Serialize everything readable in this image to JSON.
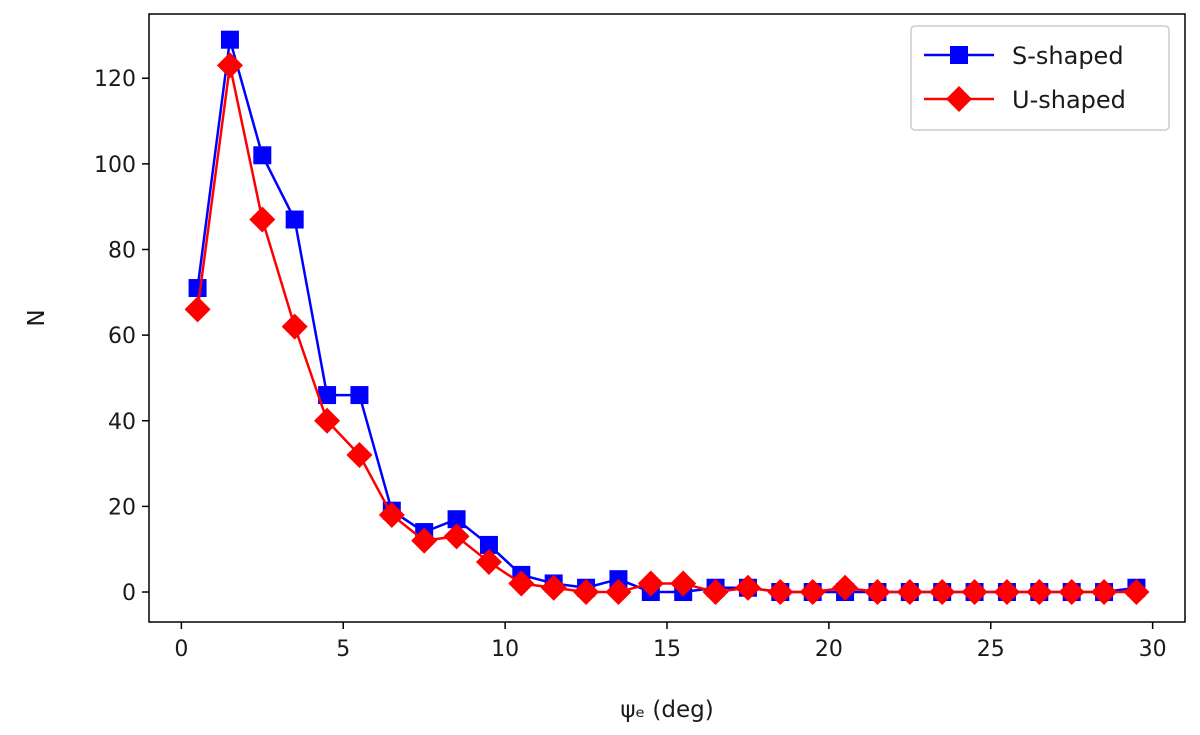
{
  "chart_data": {
    "type": "line",
    "title": "",
    "xlabel": "ψₑ (deg)",
    "ylabel": "N",
    "xlim": [
      -1,
      31
    ],
    "ylim": [
      -7,
      135
    ],
    "xticks": [
      0,
      5,
      10,
      15,
      20,
      25,
      30
    ],
    "yticks": [
      0,
      20,
      40,
      60,
      80,
      100,
      120
    ],
    "grid": false,
    "legend_position": "top-right",
    "x": [
      0.5,
      1.5,
      2.5,
      3.5,
      4.5,
      5.5,
      6.5,
      7.5,
      8.5,
      9.5,
      10.5,
      11.5,
      12.5,
      13.5,
      14.5,
      15.5,
      16.5,
      17.5,
      18.5,
      19.5,
      20.5,
      21.5,
      22.5,
      23.5,
      24.5,
      25.5,
      26.5,
      27.5,
      28.5,
      29.5
    ],
    "series": [
      {
        "name": "S-shaped",
        "color": "#0000ff",
        "marker": "square",
        "values": [
          71,
          129,
          102,
          87,
          46,
          46,
          19,
          14,
          17,
          11,
          4,
          2,
          1,
          3,
          0,
          0,
          1,
          1,
          0,
          0,
          0,
          0,
          0,
          0,
          0,
          0,
          0,
          0,
          0,
          1
        ]
      },
      {
        "name": "U-shaped",
        "color": "#ff0000",
        "marker": "diamond",
        "values": [
          66,
          123,
          87,
          62,
          40,
          32,
          18,
          12,
          13,
          7,
          2,
          1,
          0,
          0,
          2,
          2,
          0,
          1,
          0,
          0,
          1,
          0,
          0,
          0,
          0,
          0,
          0,
          0,
          0,
          0
        ]
      }
    ]
  }
}
